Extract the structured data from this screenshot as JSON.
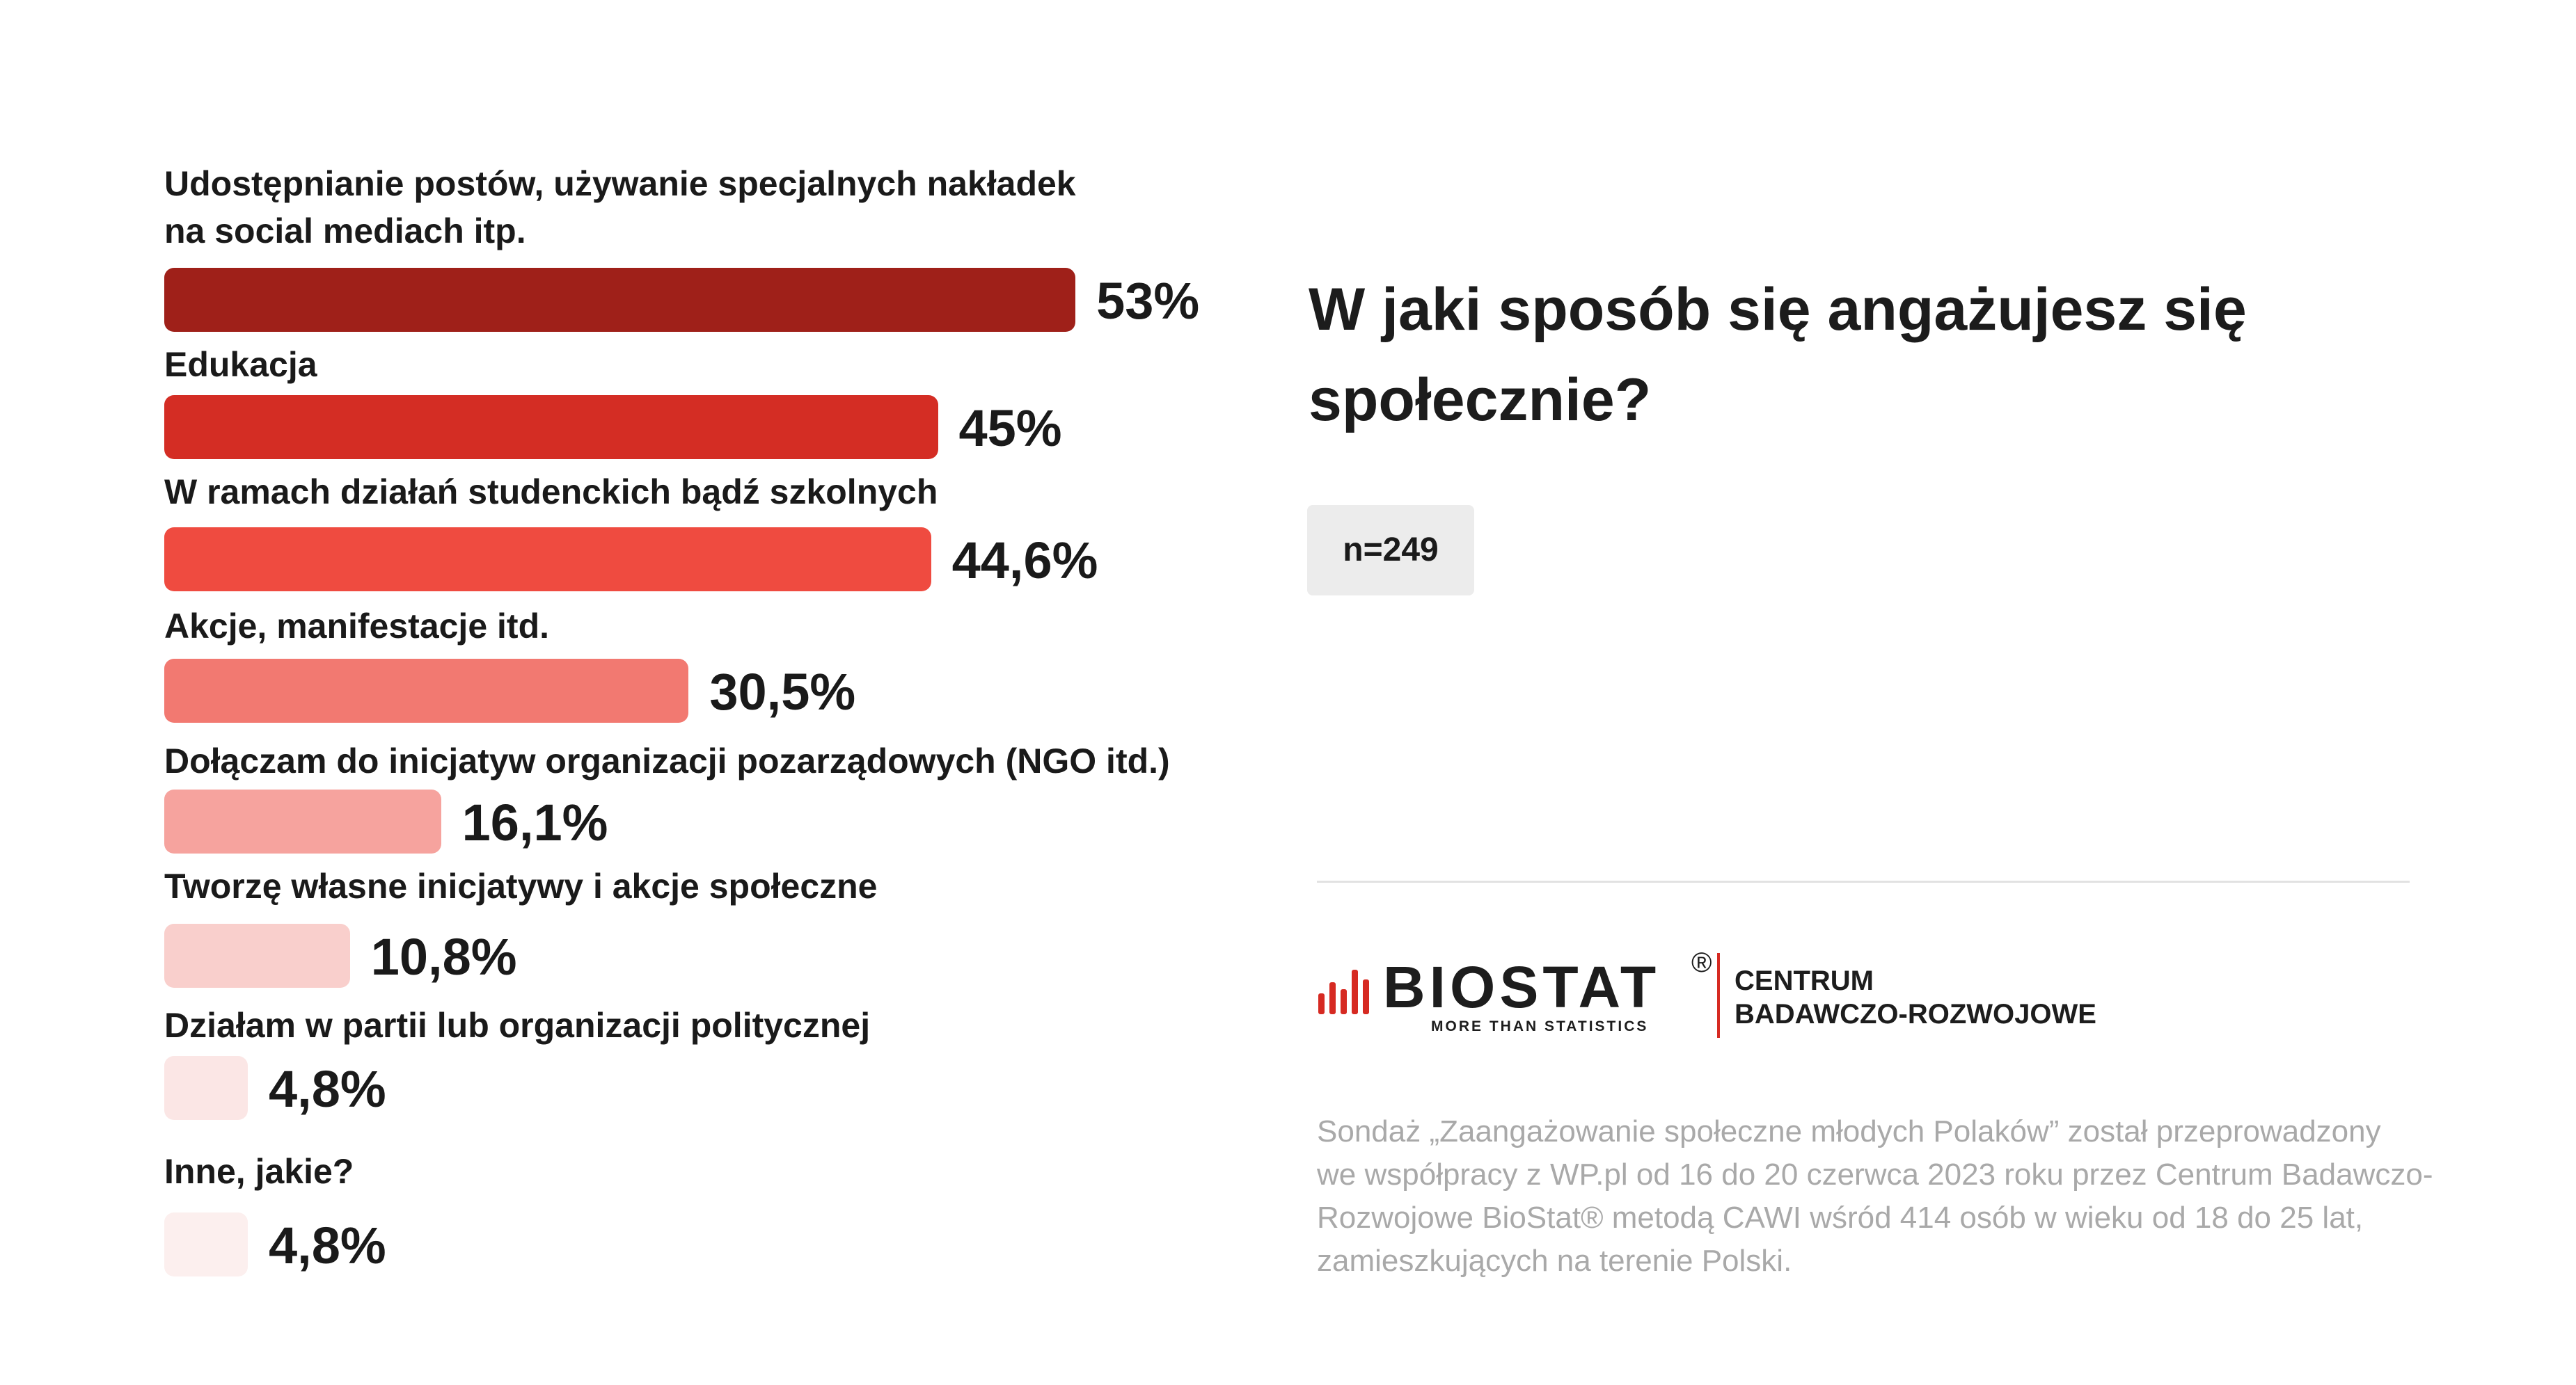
{
  "chart_data": {
    "type": "bar",
    "orientation": "horizontal",
    "title": "W jaki sposób się angażujesz się społecznie?",
    "xlabel": "",
    "ylabel": "",
    "categories": [
      "Udostępnianie postów, używanie specjalnych nakładek na social mediach itp.",
      "Edukacja",
      "W ramach działań studenckich bądź szkolnych",
      "Akcje, manifestacje itd.",
      "Dołączam do inicjatyw organizacji pozarządowych (NGO itd.)",
      "Tworzę własne inicjatywy i akcje społeczne",
      "Działam w partii lub organizacji politycznej",
      "Inne, jakie?"
    ],
    "values": [
      53,
      45,
      44.6,
      30.5,
      16.1,
      10.8,
      4.8,
      4.8
    ],
    "value_labels": [
      "53%",
      "45%",
      "44,6%",
      "30,5%",
      "16,1%",
      "10,8%",
      "4,8%",
      "4,8%"
    ],
    "colors": [
      "#9f2019",
      "#d42d24",
      "#ef4b40",
      "#f27971",
      "#f6a39e",
      "#f9cfcc",
      "#fbe6e5",
      "#fcefee"
    ],
    "grid": false,
    "legend": "none"
  },
  "sample": "n=249",
  "logo": {
    "wordmark": "BIOSTAT",
    "registered": "®",
    "tagline": "MORE THAN STATISTICS",
    "org_line1": "CENTRUM",
    "org_line2": "BADAWCZO-ROZWOJOWE",
    "accent": "#d62a22"
  },
  "footnote": {
    "line1": "Sondaż  „Zaangażowanie społeczne młodych Polaków” został przeprowadzony",
    "line2": "we współpracy z WP.pl od 16 do 20 czerwca 2023 roku przez Centrum Badawczo-",
    "line3": "Rozwojowe BioStat® metodą CAWI wśród 414 osób w wieku od 18 do 25 lat,",
    "line4": "zamieszkujących na terenie Polski."
  }
}
